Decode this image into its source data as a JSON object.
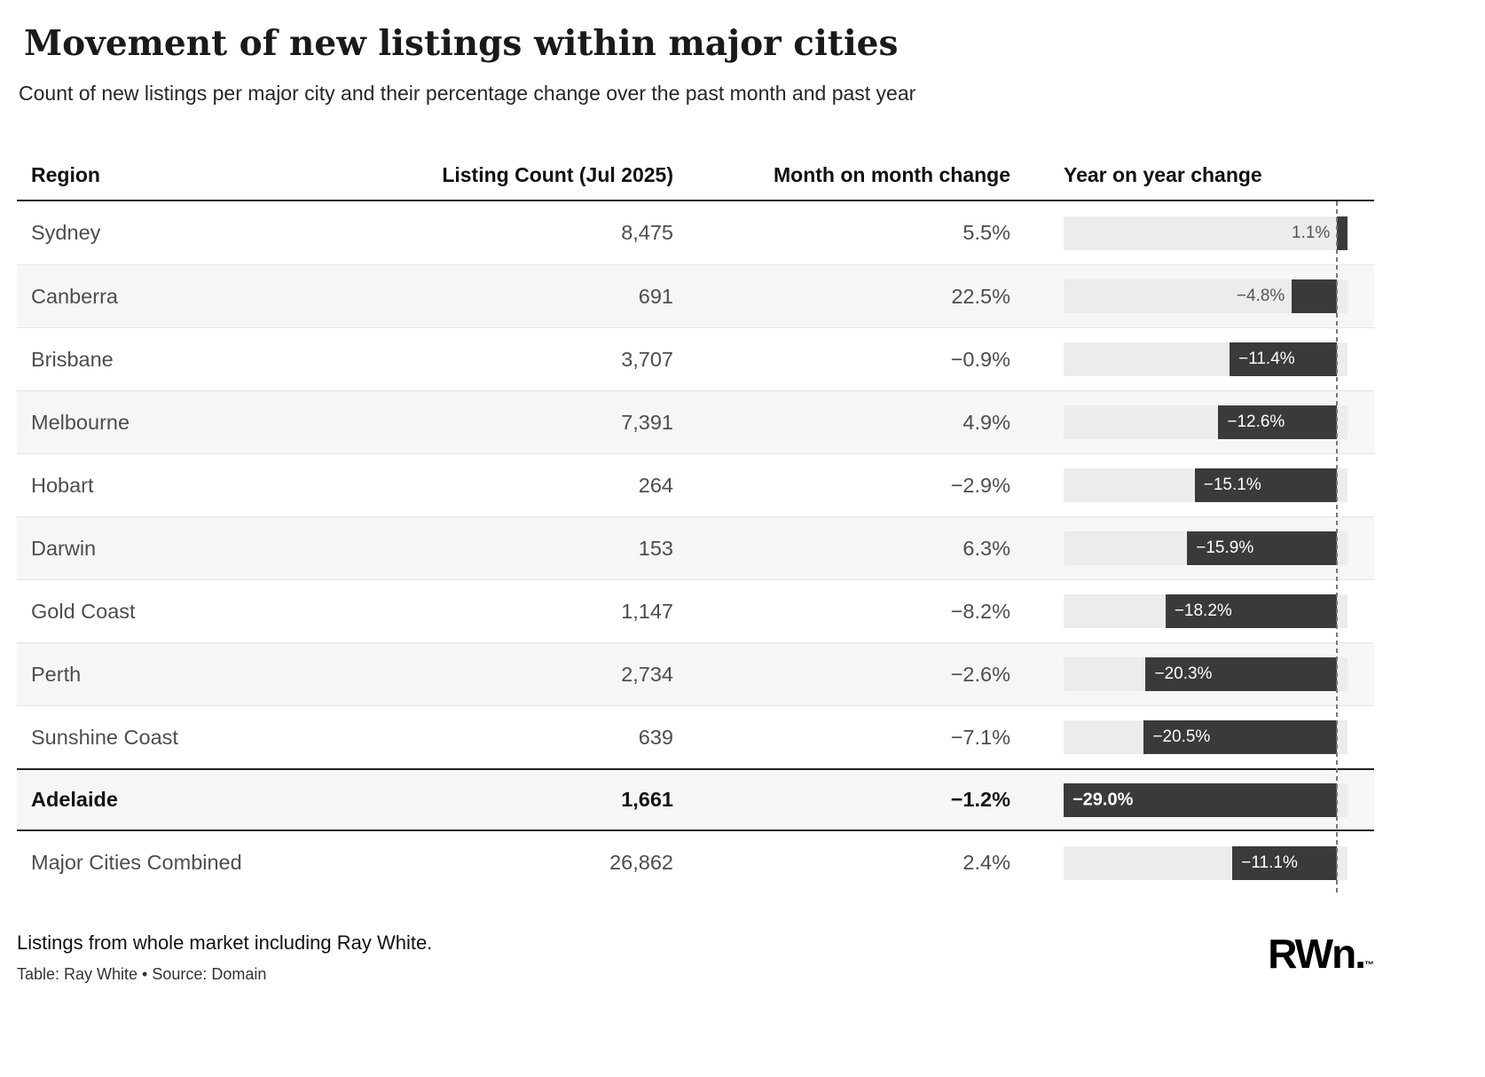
{
  "header": {
    "title": "Movement of new listings within major cities",
    "subtitle": "Count of new listings per major city and their percentage change over the past month and past year"
  },
  "chart_data": {
    "type": "table",
    "columns": [
      "Region",
      "Listing Count (Jul 2025)",
      "Month on month change",
      "Year on year change"
    ],
    "yoy_axis": {
      "min": -29.0,
      "max": 1.1,
      "zero_line": 0,
      "bar_direction": "horizontal"
    },
    "rows": [
      {
        "region": "Sydney",
        "listing_count": "8,475",
        "mom_change": "5.5%",
        "yoy_value": 1.1,
        "yoy_label": "1.1%",
        "bold": false
      },
      {
        "region": "Canberra",
        "listing_count": "691",
        "mom_change": "22.5%",
        "yoy_value": -4.8,
        "yoy_label": "−4.8%",
        "bold": false
      },
      {
        "region": "Brisbane",
        "listing_count": "3,707",
        "mom_change": "−0.9%",
        "yoy_value": -11.4,
        "yoy_label": "−11.4%",
        "bold": false
      },
      {
        "region": "Melbourne",
        "listing_count": "7,391",
        "mom_change": "4.9%",
        "yoy_value": -12.6,
        "yoy_label": "−12.6%",
        "bold": false
      },
      {
        "region": "Hobart",
        "listing_count": "264",
        "mom_change": "−2.9%",
        "yoy_value": -15.1,
        "yoy_label": "−15.1%",
        "bold": false
      },
      {
        "region": "Darwin",
        "listing_count": "153",
        "mom_change": "6.3%",
        "yoy_value": -15.9,
        "yoy_label": "−15.9%",
        "bold": false
      },
      {
        "region": "Gold Coast",
        "listing_count": "1,147",
        "mom_change": "−8.2%",
        "yoy_value": -18.2,
        "yoy_label": "−18.2%",
        "bold": false
      },
      {
        "region": "Perth",
        "listing_count": "2,734",
        "mom_change": "−2.6%",
        "yoy_value": -20.3,
        "yoy_label": "−20.3%",
        "bold": false
      },
      {
        "region": "Sunshine Coast",
        "listing_count": "639",
        "mom_change": "−7.1%",
        "yoy_value": -20.5,
        "yoy_label": "−20.5%",
        "bold": false
      },
      {
        "region": "Adelaide",
        "listing_count": "1,661",
        "mom_change": "−1.2%",
        "yoy_value": -29.0,
        "yoy_label": "−29.0%",
        "bold": true
      },
      {
        "region": "Major Cities Combined",
        "listing_count": "26,862",
        "mom_change": "2.4%",
        "yoy_value": -11.1,
        "yoy_label": "−11.1%",
        "bold": false
      }
    ]
  },
  "footer": {
    "note": "Listings from whole market including Ray White.",
    "credit": "Table: Ray White  •  Source: Domain",
    "logo_rw": "RW",
    "logo_n": "n",
    "logo_dot": ".",
    "logo_tm": "™"
  },
  "colors": {
    "bar": "#3a3a3a",
    "track": "#ececec",
    "zero_line": "#777777",
    "stripe": "#f6f6f6",
    "text": "#4d4d4d"
  }
}
